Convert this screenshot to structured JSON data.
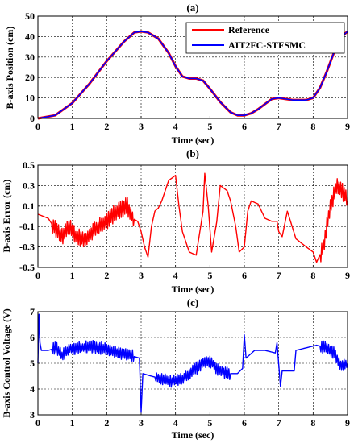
{
  "chart_data": [
    {
      "type": "line",
      "title": "(a)",
      "xlabel": "Time (sec)",
      "ylabel": "B-axis Position (cm)",
      "xlim": [
        0,
        9
      ],
      "ylim": [
        0,
        50
      ],
      "xticks": [
        0,
        1,
        2,
        3,
        4,
        5,
        6,
        7,
        8,
        9
      ],
      "yticks": [
        0,
        10,
        20,
        30,
        40,
        50
      ],
      "grid": true,
      "legend": "top-right",
      "series": [
        {
          "name": "Reference",
          "color": "#ff0000",
          "x": [
            0,
            0.5,
            1.0,
            1.5,
            2.0,
            2.5,
            2.8,
            3.0,
            3.2,
            3.5,
            3.8,
            4.0,
            4.2,
            4.4,
            4.6,
            4.8,
            5.0,
            5.3,
            5.6,
            5.8,
            6.0,
            6.2,
            6.4,
            6.6,
            6.8,
            7.0,
            7.2,
            7.4,
            7.6,
            7.8,
            8.0,
            8.2,
            8.4,
            8.6,
            8.8,
            9.0
          ],
          "y": [
            0,
            1.5,
            7.5,
            17,
            28,
            37.5,
            42,
            42.5,
            42,
            39,
            32,
            25.5,
            20.5,
            19.5,
            19.5,
            18.5,
            14.5,
            8,
            3,
            1.5,
            1.5,
            2.5,
            4.5,
            7,
            9.5,
            10,
            9.5,
            9,
            9,
            9,
            10,
            15,
            23,
            32,
            39.5,
            42.5
          ]
        },
        {
          "name": "AIT2FC-STFSMC",
          "color": "#0000ff",
          "x": [
            0,
            0.5,
            1.0,
            1.5,
            2.0,
            2.5,
            2.8,
            3.0,
            3.2,
            3.5,
            3.8,
            4.0,
            4.2,
            4.4,
            4.6,
            4.8,
            5.0,
            5.3,
            5.6,
            5.8,
            6.0,
            6.2,
            6.4,
            6.6,
            6.8,
            7.0,
            7.2,
            7.4,
            7.6,
            7.8,
            8.0,
            8.2,
            8.4,
            8.6,
            8.8,
            9.0
          ],
          "y": [
            0,
            1.5,
            7.5,
            17,
            28,
            37.5,
            42,
            42.5,
            42,
            39,
            32,
            25.5,
            20.5,
            19.5,
            19.5,
            18.5,
            14.5,
            8,
            3,
            1.5,
            1.5,
            2.5,
            4.5,
            7,
            9.5,
            10,
            9.5,
            9,
            9,
            9,
            10,
            15,
            23,
            32,
            39.5,
            42.5
          ]
        }
      ]
    },
    {
      "type": "line",
      "title": "(b)",
      "xlabel": "Time (sec)",
      "ylabel": "B-axis Error (cm)",
      "xlim": [
        0,
        9
      ],
      "ylim": [
        -0.5,
        0.5
      ],
      "xticks": [
        0,
        1,
        2,
        3,
        4,
        5,
        6,
        7,
        8,
        9
      ],
      "yticks": [
        -0.5,
        -0.3,
        -0.1,
        0.1,
        0.3,
        0.5
      ],
      "grid": true,
      "series": [
        {
          "color": "#ff0000",
          "x": [
            0,
            0.3,
            0.55,
            0.7,
            0.9,
            1.1,
            1.4,
            1.7,
            2.0,
            2.3,
            2.5,
            2.6,
            2.75,
            2.9,
            3.0,
            3.1,
            3.2,
            3.3,
            3.4,
            3.5,
            3.6,
            3.8,
            4.0,
            4.1,
            4.2,
            4.4,
            4.6,
            4.8,
            4.85,
            4.95,
            5.05,
            5.2,
            5.3,
            5.5,
            5.6,
            5.75,
            5.85,
            6.0,
            6.1,
            6.2,
            6.4,
            6.6,
            6.8,
            6.95,
            7.0,
            7.1,
            7.25,
            7.5,
            7.8,
            8.0,
            8.1,
            8.3,
            8.5,
            8.7,
            8.9,
            9.0
          ],
          "y": [
            0.02,
            -0.02,
            -0.15,
            -0.2,
            -0.1,
            -0.2,
            -0.22,
            -0.12,
            -0.05,
            0.05,
            0.08,
            0.1,
            -0.02,
            -0.05,
            -0.15,
            -0.3,
            -0.4,
            -0.1,
            0.05,
            0.08,
            0.15,
            0.35,
            0.4,
            0.1,
            -0.15,
            -0.35,
            -0.38,
            0.05,
            0.42,
            0.1,
            -0.35,
            -0.05,
            0.3,
            0.25,
            0.15,
            -0.1,
            -0.35,
            -0.3,
            0.05,
            0.15,
            0.12,
            -0.02,
            -0.05,
            -0.05,
            -0.15,
            -0.2,
            0.05,
            -0.22,
            -0.3,
            -0.35,
            -0.45,
            -0.3,
            0.1,
            0.3,
            0.22,
            0.15
          ]
        }
      ]
    },
    {
      "type": "line",
      "title": "(c)",
      "xlabel": "Time (sec)",
      "ylabel": "B-axis Control Voltage (V)",
      "xlim": [
        0,
        9
      ],
      "ylim": [
        3,
        7
      ],
      "xticks": [
        0,
        1,
        2,
        3,
        4,
        5,
        6,
        7,
        8,
        9
      ],
      "yticks": [
        3,
        4,
        5,
        6,
        7
      ],
      "grid": true,
      "series": [
        {
          "color": "#0000ff",
          "x": [
            0,
            0.03,
            0.06,
            0.1,
            0.3,
            0.55,
            0.7,
            0.9,
            1.2,
            1.5,
            1.8,
            2.1,
            2.4,
            2.7,
            2.95,
            3.0,
            3.05,
            3.3,
            3.6,
            3.9,
            4.2,
            4.5,
            4.8,
            5.0,
            5.2,
            5.5,
            5.8,
            5.95,
            6.0,
            6.05,
            6.3,
            6.6,
            6.9,
            6.95,
            7.05,
            7.1,
            7.45,
            7.5,
            7.8,
            8.1,
            8.4,
            8.6,
            8.8,
            9.0
          ],
          "y": [
            5,
            6.9,
            5.8,
            5.5,
            5.5,
            5.6,
            5.3,
            5.55,
            5.6,
            5.65,
            5.6,
            5.5,
            5.4,
            5.3,
            5.2,
            3.1,
            4.6,
            4.5,
            4.4,
            4.3,
            4.4,
            4.7,
            5.0,
            5.1,
            4.8,
            4.6,
            4.6,
            4.8,
            6.1,
            5.2,
            5.5,
            5.5,
            5.4,
            5.8,
            4.1,
            4.7,
            4.7,
            5.5,
            5.6,
            5.7,
            5.6,
            5.4,
            4.9,
            5.0
          ]
        }
      ]
    }
  ]
}
